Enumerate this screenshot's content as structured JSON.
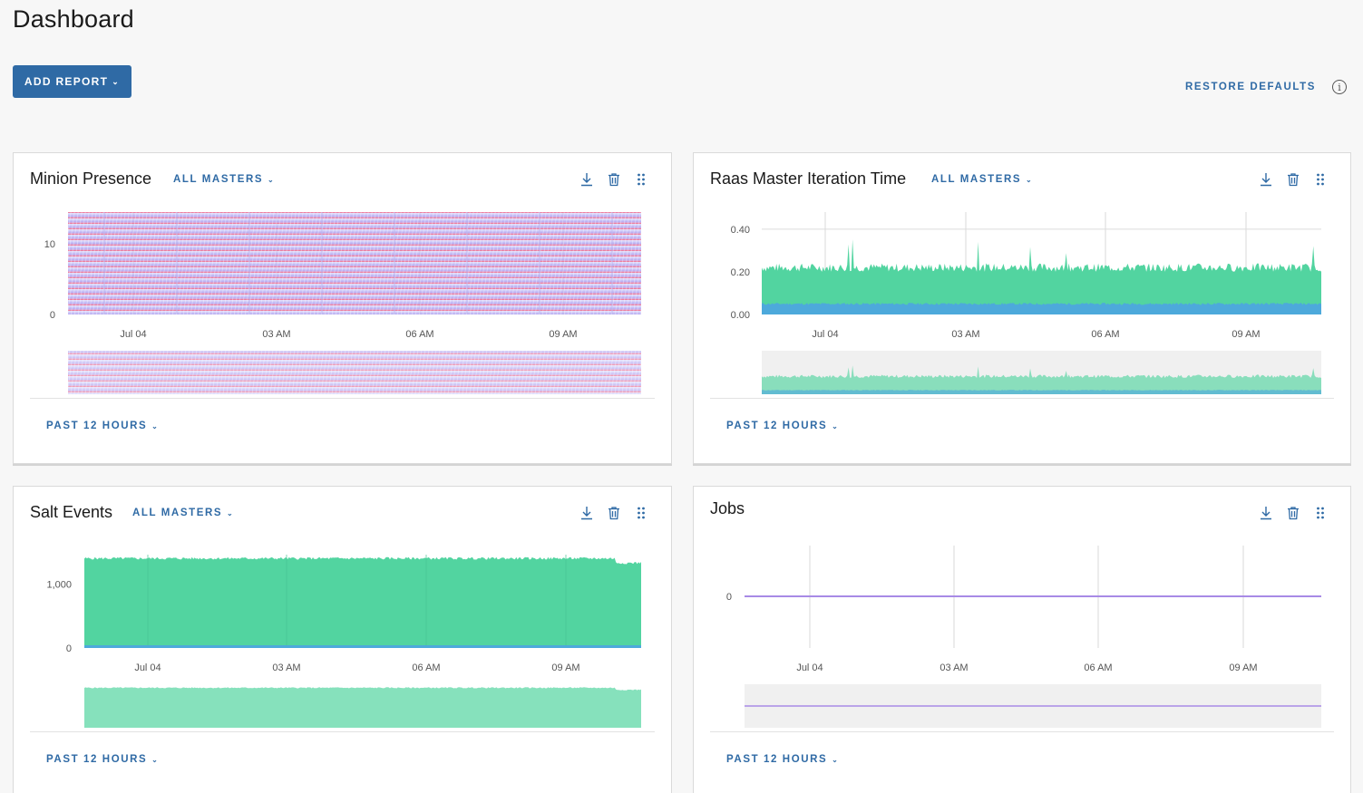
{
  "page": {
    "title": "Dashboard"
  },
  "toolbar": {
    "add_report_label": "ADD REPORT",
    "restore_defaults_label": "RESTORE DEFAULTS",
    "info_icon": "info-circle-icon"
  },
  "colors": {
    "accent": "#2f6aa5",
    "green": "#52d4a0",
    "blue": "#4da9db",
    "purple": "#a88ae6",
    "red": "#f0506e"
  },
  "cards": [
    {
      "title": "Minion Presence",
      "masters": "ALL MASTERS",
      "period": "PAST 12 HOURS"
    },
    {
      "title": "Raas Master Iteration Time",
      "masters": "ALL MASTERS",
      "period": "PAST 12 HOURS"
    },
    {
      "title": "Salt Events",
      "masters": "ALL MASTERS",
      "period": "PAST 12 HOURS"
    },
    {
      "title": "Jobs",
      "masters": "",
      "period": "PAST 12 HOURS"
    }
  ],
  "card_icons": [
    "download-icon",
    "trash-icon",
    "drag-handle-icon"
  ],
  "chart_data": [
    {
      "type": "area",
      "title": "Minion Presence",
      "x_ticks": [
        "Jul 04",
        "03 AM",
        "06 AM",
        "09 AM"
      ],
      "y_ticks": [
        "0",
        "10"
      ],
      "ylim": [
        0,
        14.5
      ],
      "series": [
        {
          "values": [
            14.5
          ],
          "color": "#a88ae6"
        }
      ],
      "brush": true
    },
    {
      "type": "area",
      "title": "Raas Master Iteration Time",
      "x_ticks": [
        "Jul 04",
        "03 AM",
        "06 AM",
        "09 AM"
      ],
      "y_ticks": [
        "0.00",
        "0.20",
        "0.40"
      ],
      "ylim": [
        0,
        0.48
      ],
      "series": [
        {
          "values": [
            0.22
          ],
          "color": "#52d4a0"
        },
        {
          "values": [
            0.05
          ],
          "color": "#4da9db"
        }
      ],
      "brush": true
    },
    {
      "type": "area",
      "title": "Salt Events",
      "x_ticks": [
        "Jul 04",
        "03 AM",
        "06 AM",
        "09 AM"
      ],
      "y_ticks": [
        "0",
        "1,000"
      ],
      "ylim": [
        0,
        1600
      ],
      "series": [
        {
          "values": [
            1400
          ],
          "color": "#52d4a0"
        },
        {
          "values": [
            20
          ],
          "color": "#4da9db"
        }
      ],
      "brush": true
    },
    {
      "type": "line",
      "title": "Jobs",
      "x_ticks": [
        "Jul 04",
        "03 AM",
        "06 AM",
        "09 AM"
      ],
      "y_ticks": [
        "0"
      ],
      "series": [
        {
          "values": [
            0,
            0
          ],
          "color": "#a88ae6"
        }
      ],
      "brush": true
    }
  ]
}
